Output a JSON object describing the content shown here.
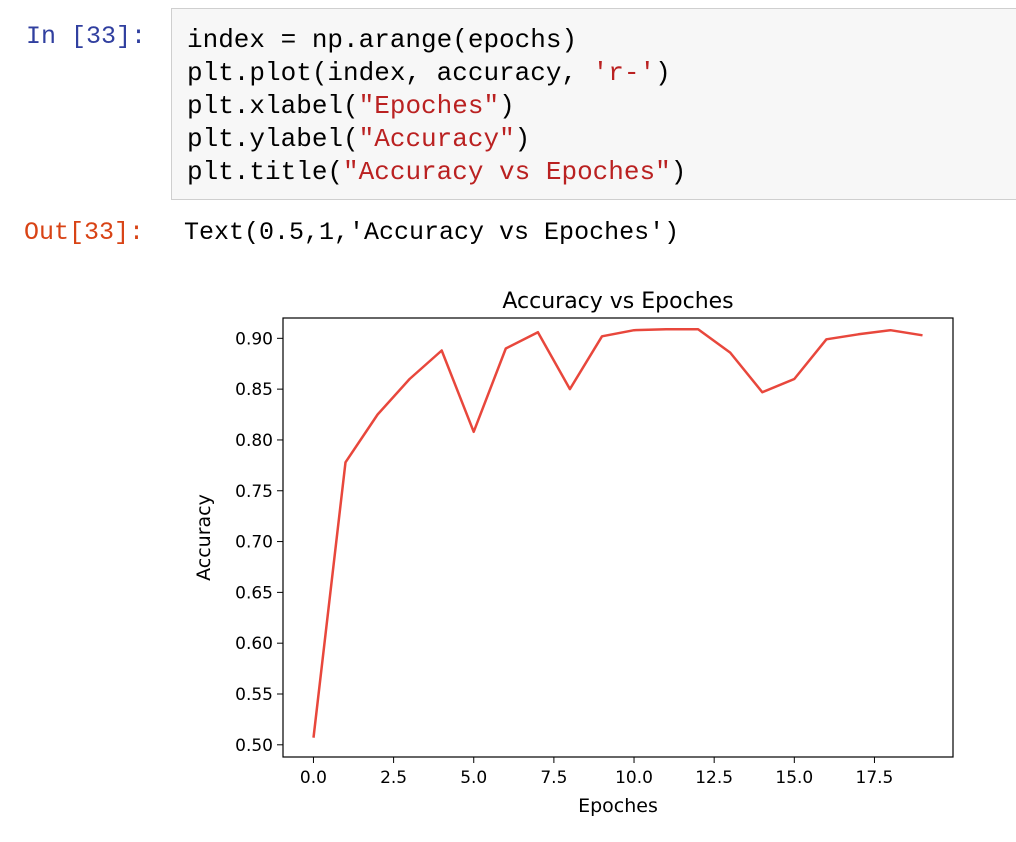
{
  "cell": {
    "in_prompt": "In [33]:",
    "out_prompt": "Out[33]:",
    "code_lines": [
      [
        {
          "t": "index = np.arange(epochs)",
          "c": "plain"
        }
      ],
      [
        {
          "t": "plt.plot(index, accuracy, ",
          "c": "plain"
        },
        {
          "t": "'r-'",
          "c": "str"
        },
        {
          "t": ")",
          "c": "plain"
        }
      ],
      [
        {
          "t": "plt.xlabel(",
          "c": "plain"
        },
        {
          "t": "\"Epoches\"",
          "c": "str"
        },
        {
          "t": ")",
          "c": "plain"
        }
      ],
      [
        {
          "t": "plt.ylabel(",
          "c": "plain"
        },
        {
          "t": "\"Accuracy\"",
          "c": "str"
        },
        {
          "t": ")",
          "c": "plain"
        }
      ],
      [
        {
          "t": "plt.title(",
          "c": "plain"
        },
        {
          "t": "\"Accuracy vs Epoches\"",
          "c": "str"
        },
        {
          "t": ")",
          "c": "plain"
        }
      ]
    ],
    "output_text": "Text(0.5,1,'Accuracy vs Epoches')"
  },
  "chart_data": {
    "type": "line",
    "title": "Accuracy vs Epoches",
    "xlabel": "Epoches",
    "ylabel": "Accuracy",
    "xlim": [
      -0.95,
      19.95
    ],
    "ylim": [
      0.488,
      0.92
    ],
    "xticks": [
      0.0,
      2.5,
      5.0,
      7.5,
      10.0,
      12.5,
      15.0,
      17.5
    ],
    "xtick_labels": [
      "0.0",
      "2.5",
      "5.0",
      "7.5",
      "10.0",
      "12.5",
      "15.0",
      "17.5"
    ],
    "yticks": [
      0.5,
      0.55,
      0.6,
      0.65,
      0.7,
      0.75,
      0.8,
      0.85,
      0.9
    ],
    "ytick_labels": [
      "0.50",
      "0.55",
      "0.60",
      "0.65",
      "0.70",
      "0.75",
      "0.80",
      "0.85",
      "0.90"
    ],
    "grid": false,
    "color": "#e8473c",
    "series": [
      {
        "x": [
          0,
          1,
          2,
          3,
          4,
          5,
          6,
          7,
          8,
          9,
          10,
          11,
          12,
          13,
          14,
          15,
          16,
          17,
          18,
          19
        ],
        "values": [
          0.507,
          0.778,
          0.825,
          0.86,
          0.888,
          0.808,
          0.89,
          0.906,
          0.85,
          0.902,
          0.908,
          0.909,
          0.909,
          0.886,
          0.847,
          0.86,
          0.899,
          0.904,
          0.908,
          0.903
        ]
      }
    ]
  }
}
